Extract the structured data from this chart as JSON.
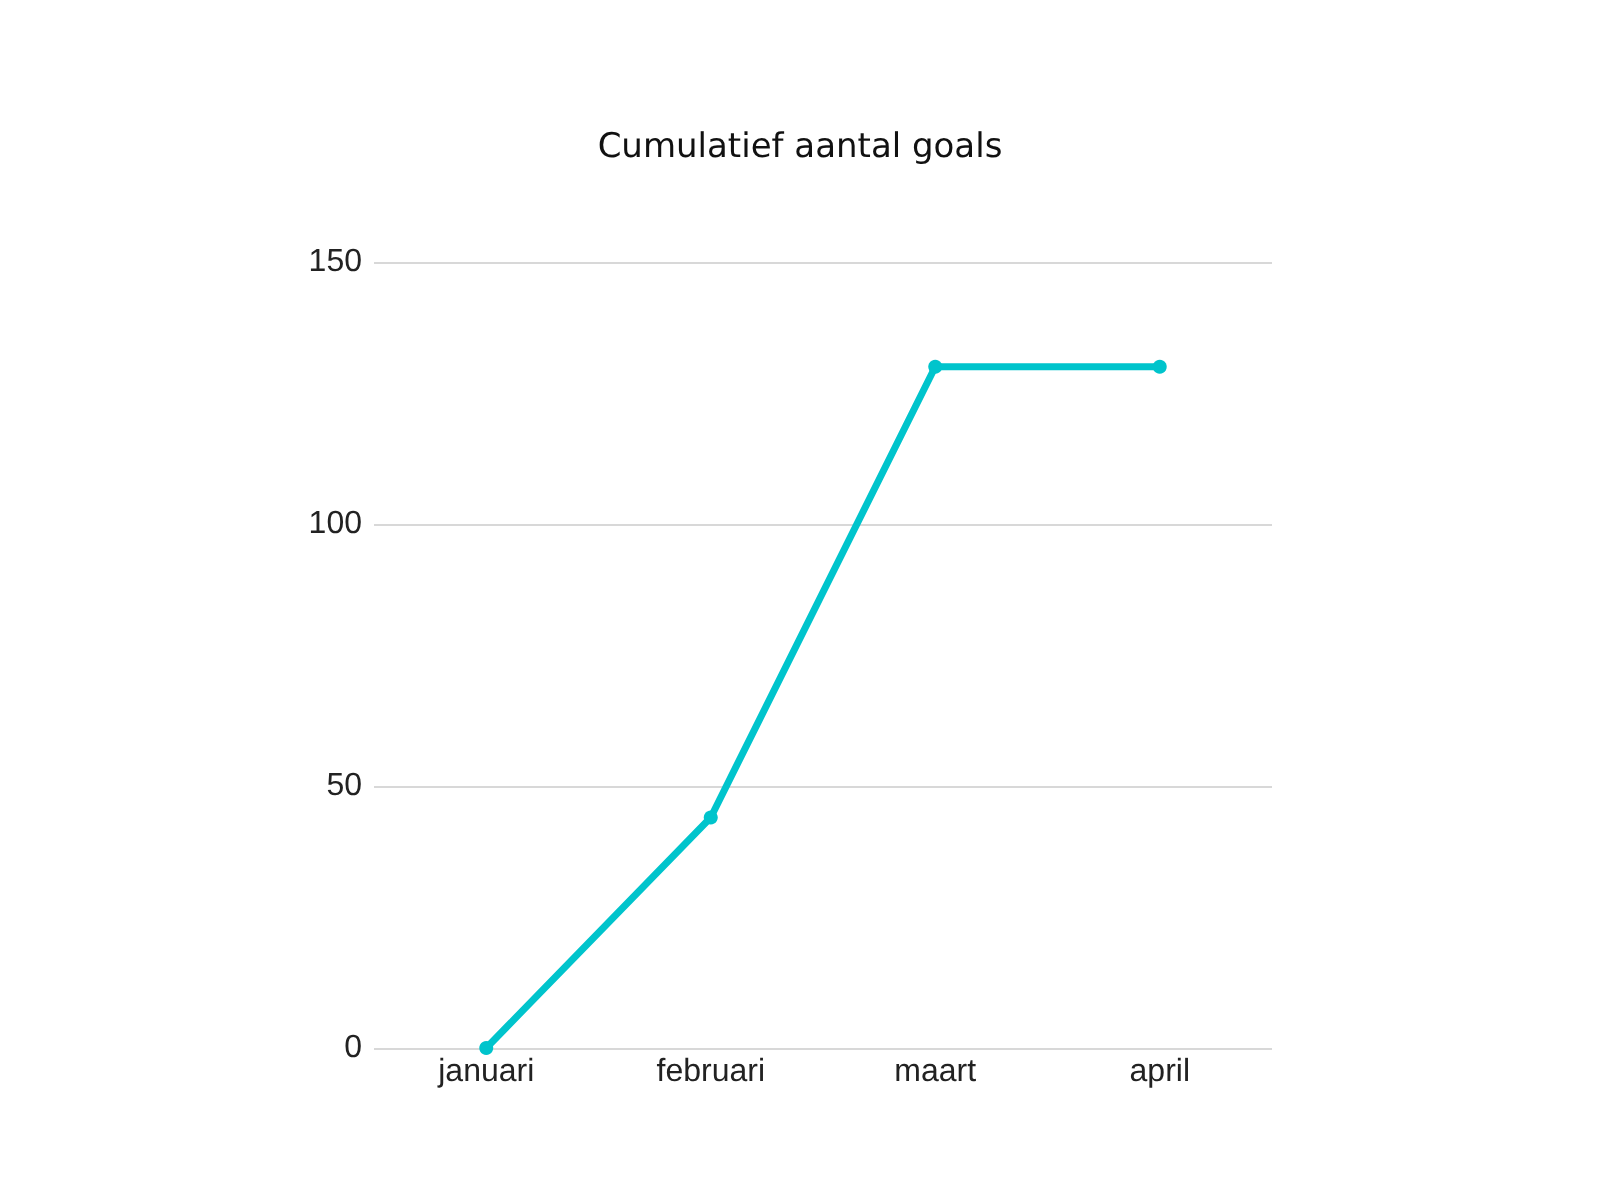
{
  "chart_data": {
    "type": "line",
    "title": "Cumulatief aantal goals",
    "categories": [
      "januari",
      "februari",
      "maart",
      "april"
    ],
    "series": [
      {
        "color": "#00c4cc",
        "values": [
          0,
          44,
          130,
          130
        ]
      }
    ],
    "ylim": [
      0,
      150
    ],
    "yticks": [
      0,
      50,
      100,
      150
    ],
    "grid": "y",
    "marker": "circle"
  }
}
